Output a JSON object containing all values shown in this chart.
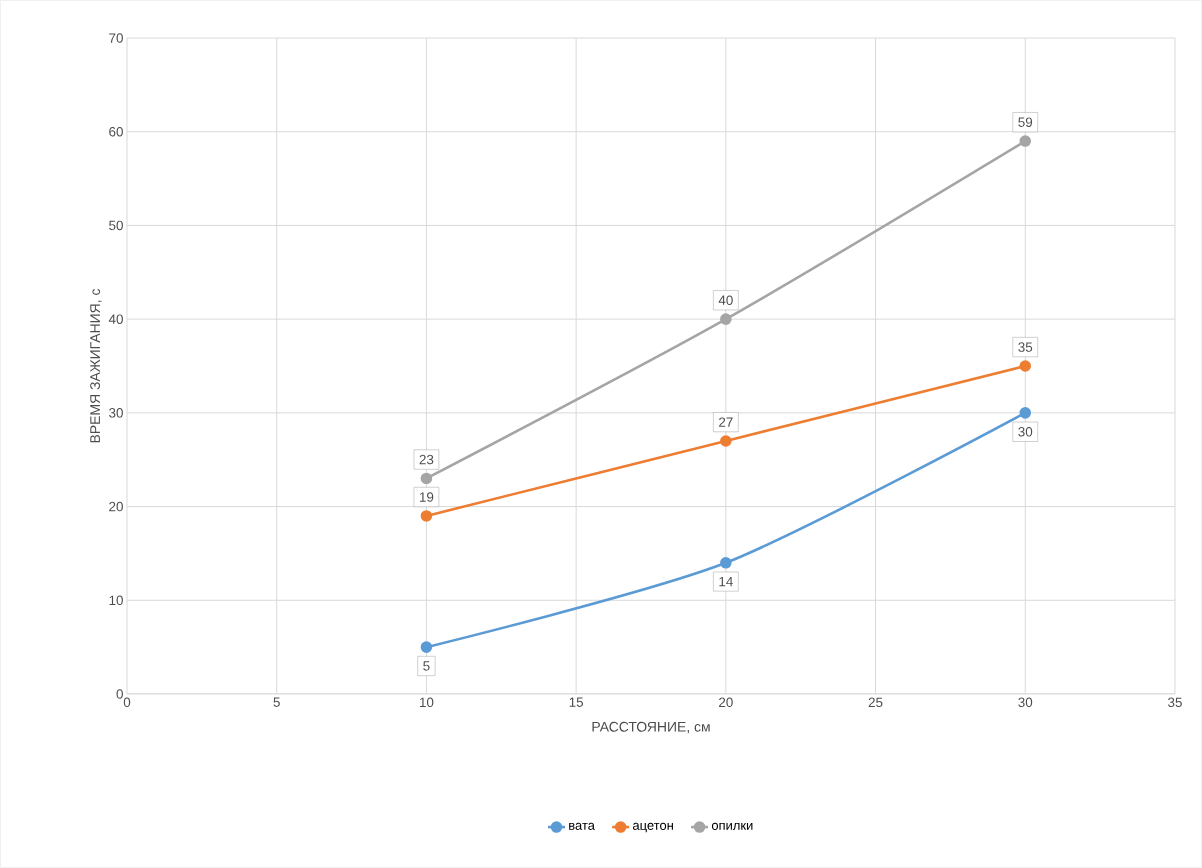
{
  "chart_data": {
    "type": "line",
    "xlabel": "РАССТОЯНИЕ, см",
    "ylabel": "ВРЕМЯ ЗАЖИГАНИЯ, с",
    "x": [
      10,
      20,
      30
    ],
    "series": [
      {
        "name": "вата",
        "color": "#5b9bd5",
        "values": [
          5,
          14,
          30
        ]
      },
      {
        "name": "ацетон",
        "color": "#ed7d31",
        "values": [
          19,
          27,
          35
        ]
      },
      {
        "name": "опилки",
        "color": "#a5a5a5",
        "values": [
          23,
          40,
          59
        ]
      }
    ],
    "xlim": [
      0,
      35
    ],
    "xticks": [
      0,
      5,
      10,
      15,
      20,
      25,
      30,
      35
    ],
    "ylim": [
      0,
      70
    ],
    "yticks": [
      0,
      10,
      20,
      30,
      40,
      50,
      60,
      70
    ],
    "grid": true,
    "legend": "bottom",
    "marker": "circle",
    "data_labels": true
  }
}
